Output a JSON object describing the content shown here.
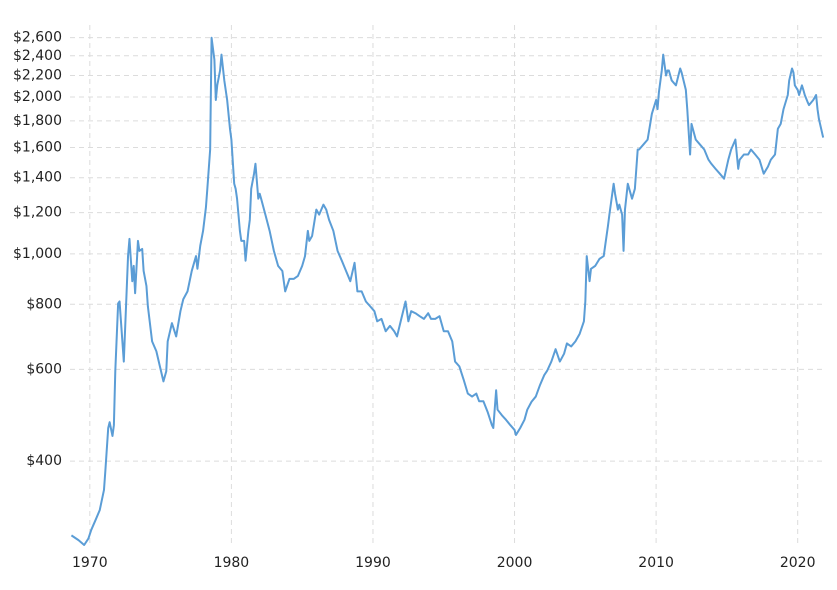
{
  "chart_data": {
    "type": "line",
    "yscale": "log",
    "grid": true,
    "color": "#5b9dd6",
    "xlim": [
      1968.6,
      2022.0
    ],
    "xticks": [
      1970,
      1980,
      1990,
      2000,
      2010,
      2020
    ],
    "ylim": [
      276,
      2750
    ],
    "yticks": [
      {
        "value": 400,
        "label": "$400"
      },
      {
        "value": 600,
        "label": "$600"
      },
      {
        "value": 800,
        "label": "$800"
      },
      {
        "value": 1000,
        "label": "$1,000"
      },
      {
        "value": 1200,
        "label": "$1,200"
      },
      {
        "value": 1400,
        "label": "$1,400"
      },
      {
        "value": 1600,
        "label": "$1,600"
      },
      {
        "value": 1800,
        "label": "$1,800"
      },
      {
        "value": 2000,
        "label": "$2,000"
      },
      {
        "value": 2200,
        "label": "$2,200"
      },
      {
        "value": 2400,
        "label": "$2,400"
      },
      {
        "value": 2600,
        "label": "$2,600"
      }
    ],
    "x": [
      1968.7,
      1969.2,
      1969.6,
      1969.9,
      1970.1,
      1970.4,
      1970.7,
      1971.0,
      1971.1,
      1971.3,
      1971.4,
      1971.6,
      1971.7,
      1971.8,
      1972.0,
      1972.1,
      1972.3,
      1972.4,
      1972.6,
      1972.7,
      1972.8,
      1973.0,
      1973.1,
      1973.2,
      1973.4,
      1973.5,
      1973.7,
      1973.8,
      1974.0,
      1974.1,
      1974.4,
      1974.7,
      1974.9,
      1975.2,
      1975.4,
      1975.5,
      1975.8,
      1976.1,
      1976.4,
      1976.6,
      1976.9,
      1977.2,
      1977.5,
      1977.6,
      1977.8,
      1978.0,
      1978.2,
      1978.3,
      1978.5,
      1978.6,
      1978.8,
      1978.9,
      1979.0,
      1979.2,
      1979.3,
      1979.5,
      1979.7,
      1979.9,
      1980.0,
      1980.2,
      1980.3,
      1980.4,
      1980.6,
      1980.7,
      1980.9,
      1981.0,
      1981.2,
      1981.3,
      1981.4,
      1981.6,
      1981.7,
      1981.9,
      1982.0,
      1982.1,
      1982.4,
      1982.7,
      1983.0,
      1983.3,
      1983.6,
      1983.8,
      1984.1,
      1984.4,
      1984.7,
      1985.0,
      1985.2,
      1985.4,
      1985.5,
      1985.7,
      1986.0,
      1986.2,
      1986.5,
      1986.7,
      1986.9,
      1987.2,
      1987.5,
      1987.8,
      1988.1,
      1988.4,
      1988.7,
      1988.9,
      1989.2,
      1989.5,
      1989.8,
      1990.1,
      1990.3,
      1990.6,
      1990.9,
      1991.2,
      1991.5,
      1991.7,
      1992.0,
      1992.3,
      1992.5,
      1992.7,
      1993.0,
      1993.3,
      1993.6,
      1993.9,
      1994.1,
      1994.4,
      1994.7,
      1995.0,
      1995.3,
      1995.6,
      1995.8,
      1996.1,
      1996.4,
      1996.7,
      1997.0,
      1997.3,
      1997.5,
      1997.8,
      1998.1,
      1998.4,
      1998.5,
      1998.7,
      1998.8,
      1999.1,
      1999.4,
      1999.7,
      2000.0,
      2000.1,
      2000.4,
      2000.7,
      2000.9,
      2001.2,
      2001.5,
      2001.8,
      2002.1,
      2002.3,
      2002.6,
      2002.9,
      2003.2,
      2003.5,
      2003.7,
      2004.0,
      2004.3,
      2004.6,
      2004.9,
      2005.0,
      2005.1,
      2005.3,
      2005.4,
      2005.7,
      2006.0,
      2006.3,
      2006.4,
      2006.6,
      2006.7,
      2007.0,
      2007.1,
      2007.3,
      2007.4,
      2007.6,
      2007.7,
      2007.8,
      2008.0,
      2008.3,
      2008.5,
      2008.7,
      2008.8,
      2009.1,
      2009.4,
      2009.7,
      2010.0,
      2010.1,
      2010.2,
      2010.4,
      2010.5,
      2010.7,
      2010.8,
      2010.9,
      2011.1,
      2011.4,
      2011.7,
      2011.8,
      2012.1,
      2012.2,
      2012.4,
      2012.5,
      2012.8,
      2013.1,
      2013.4,
      2013.7,
      2013.9,
      2014.2,
      2014.5,
      2014.8,
      2015.1,
      2015.3,
      2015.6,
      2015.8,
      2015.9,
      2016.2,
      2016.5,
      2016.7,
      2017.0,
      2017.3,
      2017.6,
      2017.9,
      2018.1,
      2018.4,
      2018.6,
      2018.8,
      2019.0,
      2019.3,
      2019.4,
      2019.6,
      2019.7,
      2019.8,
      2020.0,
      2020.1,
      2020.3,
      2020.4,
      2020.5,
      2020.7,
      2020.8,
      2021.1,
      2021.3,
      2021.4,
      2021.5,
      2021.8
    ],
    "values": [
      288,
      282,
      276,
      284,
      295,
      308,
      322,
      352,
      384,
      463,
      475,
      447,
      469,
      596,
      803,
      810,
      679,
      621,
      847,
      990,
      1068,
      886,
      948,
      840,
      1059,
      1013,
      1022,
      927,
      867,
      793,
      679,
      650,
      616,
      569,
      595,
      679,
      736,
      694,
      776,
      818,
      847,
      927,
      990,
      936,
      1036,
      1107,
      1227,
      1333,
      1586,
      2600,
      2358,
      1974,
      2106,
      2249,
      2412,
      2152,
      1974,
      1738,
      1657,
      1363,
      1333,
      1276,
      1107,
      1059,
      1059,
      970,
      1107,
      1162,
      1333,
      1425,
      1489,
      1276,
      1304,
      1276,
      1189,
      1107,
      1013,
      948,
      927,
      847,
      895,
      895,
      907,
      948,
      990,
      1107,
      1059,
      1082,
      1216,
      1189,
      1243,
      1216,
      1162,
      1107,
      1013,
      970,
      927,
      886,
      961,
      847,
      847,
      810,
      793,
      776,
      742,
      750,
      710,
      727,
      710,
      694,
      750,
      810,
      742,
      776,
      769,
      759,
      750,
      769,
      750,
      750,
      759,
      710,
      710,
      679,
      621,
      608,
      574,
      539,
      532,
      539,
      521,
      521,
      497,
      469,
      463,
      547,
      502,
      490,
      480,
      469,
      459,
      449,
      463,
      480,
      502,
      520,
      532,
      560,
      585,
      596,
      621,
      656,
      621,
      643,
      673,
      664,
      679,
      702,
      742,
      810,
      990,
      886,
      936,
      948,
      978,
      990,
      1036,
      1132,
      1189,
      1363,
      1304,
      1216,
      1243,
      1189,
      1013,
      1216,
      1363,
      1276,
      1333,
      1586,
      1586,
      1621,
      1657,
      1857,
      1974,
      1896,
      2045,
      2249,
      2412,
      2200,
      2249,
      2249,
      2152,
      2106,
      2269,
      2229,
      2064,
      1896,
      1551,
      1776,
      1657,
      1621,
      1586,
      1516,
      1489,
      1456,
      1425,
      1394,
      1516,
      1586,
      1657,
      1456,
      1516,
      1551,
      1551,
      1586,
      1551,
      1516,
      1425,
      1470,
      1516,
      1551,
      1738,
      1776,
      1896,
      2018,
      2152,
      2269,
      2229,
      2106,
      2064,
      2018,
      2106,
      2064,
      2018,
      1956,
      1930,
      1974,
      2018,
      1896,
      1815,
      1672
    ]
  }
}
